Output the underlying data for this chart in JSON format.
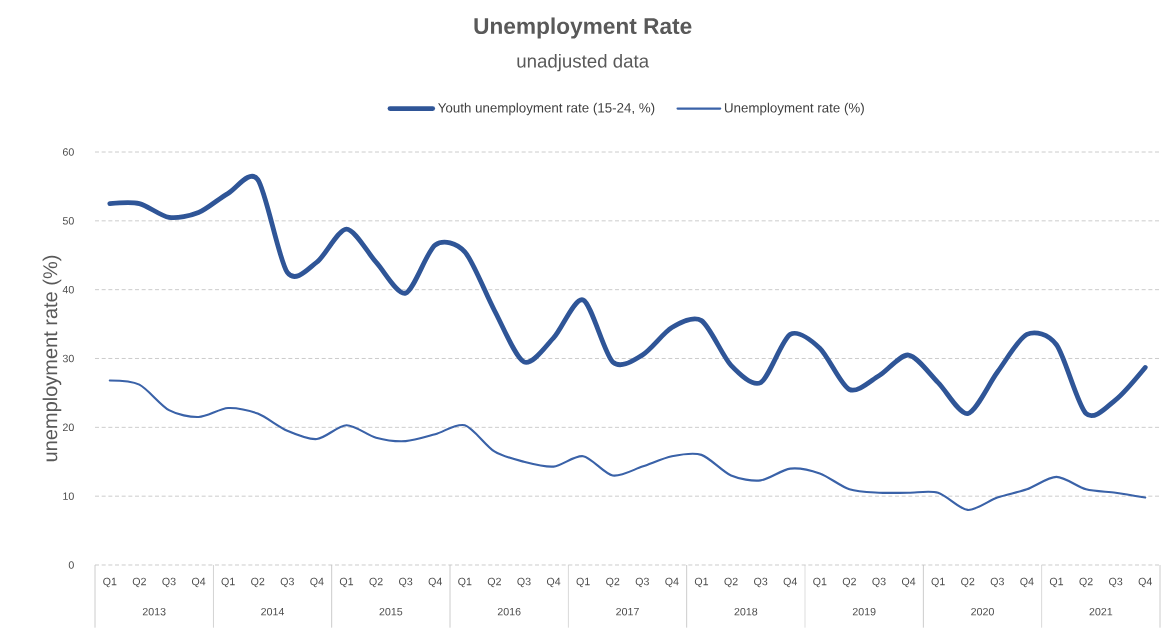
{
  "chart_data": {
    "type": "line",
    "title": "Unemployment Rate",
    "subtitle": "unadjusted data",
    "ylabel": "unemployment rate (%)",
    "categories": [
      "Q1",
      "Q2",
      "Q3",
      "Q4",
      "Q1",
      "Q2",
      "Q3",
      "Q4",
      "Q1",
      "Q2",
      "Q3",
      "Q4",
      "Q1",
      "Q2",
      "Q3",
      "Q4",
      "Q1",
      "Q2",
      "Q3",
      "Q4",
      "Q1",
      "Q2",
      "Q3",
      "Q4",
      "Q1",
      "Q2",
      "Q3",
      "Q4",
      "Q1",
      "Q2",
      "Q3",
      "Q4",
      "Q1",
      "Q2",
      "Q3",
      "Q4"
    ],
    "annotations": [
      "2013",
      "2014",
      "2015",
      "2016",
      "2017",
      "2018",
      "2019",
      "2020",
      "2021"
    ],
    "series": [
      {
        "name": "Youth unemployment rate (15-24, %)",
        "color": "#2f5597",
        "values": [
          52.5,
          52.5,
          50.5,
          51.2,
          54,
          56,
          42.5,
          44,
          48.8,
          44,
          39.5,
          46.5,
          45.5,
          37,
          29.5,
          33,
          38.5,
          29.5,
          30.5,
          34.5,
          35.5,
          29,
          26.5,
          33.5,
          31.5,
          25.5,
          27.5,
          30.5,
          26.5,
          22,
          28,
          33.5,
          32,
          22,
          24,
          28.7
        ]
      },
      {
        "name": "Unemployment rate (%)",
        "color": "#3a62a8",
        "values": [
          26.8,
          26.2,
          22.5,
          21.5,
          22.8,
          22,
          19.5,
          18.3,
          20.3,
          18.5,
          18,
          19,
          20.3,
          16.5,
          15,
          14.3,
          15.8,
          13,
          14.3,
          15.8,
          16,
          13,
          12.3,
          14,
          13.3,
          11,
          10.5,
          10.5,
          10.5,
          8,
          9.8,
          11,
          12.8,
          11,
          10.5,
          9.8
        ]
      }
    ],
    "ylim": [
      0,
      60
    ],
    "yticks": [
      0,
      10,
      20,
      30,
      40,
      50,
      60
    ],
    "grid": "y",
    "legend": "top",
    "line_style": "solid",
    "marker": "none"
  }
}
